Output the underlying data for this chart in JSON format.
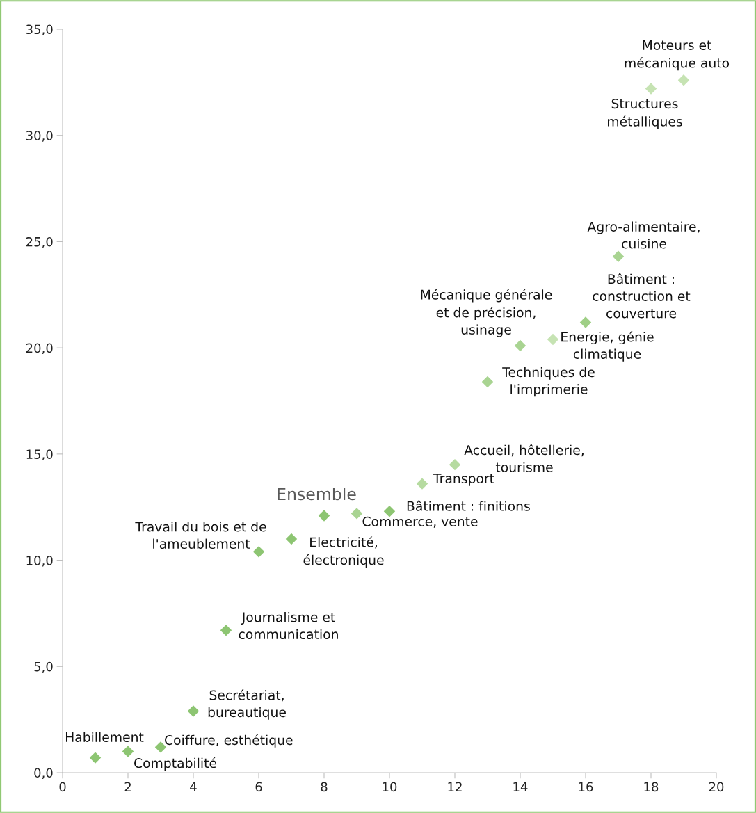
{
  "chart_data": {
    "type": "scatter",
    "marker": "diamond",
    "grid": false,
    "legend": false,
    "x": [
      1,
      2,
      3,
      4,
      5,
      6,
      7,
      8,
      9,
      10,
      11,
      12,
      13,
      14,
      15,
      16,
      17,
      18,
      19
    ],
    "values": [
      0.7,
      1.0,
      1.2,
      2.9,
      6.7,
      10.4,
      11.0,
      12.1,
      12.2,
      12.3,
      13.6,
      14.5,
      18.4,
      20.1,
      20.4,
      21.2,
      24.3,
      32.2,
      32.6
    ],
    "colors": [
      "#8dc572",
      "#8dc572",
      "#8dc572",
      "#8dc572",
      "#8dc572",
      "#8dc572",
      "#8dc572",
      "#8dc572",
      "#a9d492",
      "#8dc572",
      "#b6dba0",
      "#b6dba0",
      "#a9d492",
      "#a9d492",
      "#c6e3b3",
      "#9fcf86",
      "#a9d492",
      "#c6e3b3",
      "#c6e3b3"
    ],
    "xlim": [
      0,
      20
    ],
    "xticks": [
      0,
      2,
      4,
      6,
      8,
      10,
      12,
      14,
      16,
      18,
      20
    ],
    "ylim": [
      0,
      35
    ],
    "yticks": [
      {
        "value": 0,
        "label": "0,0"
      },
      {
        "value": 5,
        "label": "5,0"
      },
      {
        "value": 10,
        "label": "10,0"
      },
      {
        "value": 15,
        "label": "15,0"
      },
      {
        "value": 20,
        "label": "20,0"
      },
      {
        "value": 25,
        "label": "25,0"
      },
      {
        "value": 30,
        "label": "30,0"
      },
      {
        "value": 35,
        "label": "35,0"
      }
    ],
    "annotations": [
      {
        "text": "Habillement",
        "x": 1,
        "y": 0.7
      },
      {
        "text": "Comptabilité",
        "x": 2,
        "y": 1.0
      },
      {
        "text": "Coiffure, esthétique",
        "x": 3,
        "y": 1.2
      },
      {
        "text": "Secrétariat,\nbureautique",
        "x": 4,
        "y": 2.9
      },
      {
        "text": "Journalisme et\ncommunication",
        "x": 5,
        "y": 6.7
      },
      {
        "text": "Travail du bois et de\nl'ameublement",
        "x": 6,
        "y": 10.4
      },
      {
        "text": "Electricité,\nélectronique",
        "x": 7,
        "y": 11.0
      },
      {
        "text": "Ensemble",
        "x": 8,
        "y": 12.1
      },
      {
        "text": "Commerce, vente",
        "x": 9,
        "y": 12.2
      },
      {
        "text": "Bâtiment : finitions",
        "x": 10,
        "y": 12.3
      },
      {
        "text": "Transport",
        "x": 11,
        "y": 13.6
      },
      {
        "text": "Accueil, hôtellerie,\ntourisme",
        "x": 12,
        "y": 14.5
      },
      {
        "text": "Techniques de\nl'imprimerie",
        "x": 13,
        "y": 18.4
      },
      {
        "text": "Mécanique générale\net de précision,\nusinage",
        "x": 14,
        "y": 20.1
      },
      {
        "text": "Energie, génie\nclimatique",
        "x": 15,
        "y": 20.4
      },
      {
        "text": "Bâtiment :\nconstruction et\ncouverture",
        "x": 16,
        "y": 21.2
      },
      {
        "text": "Agro-alimentaire,\ncuisine",
        "x": 17,
        "y": 24.3
      },
      {
        "text": "Structures\nmétalliques",
        "x": 18,
        "y": 32.2
      },
      {
        "text": "Moteurs et\nmécanique auto",
        "x": 19,
        "y": 32.6
      }
    ]
  }
}
